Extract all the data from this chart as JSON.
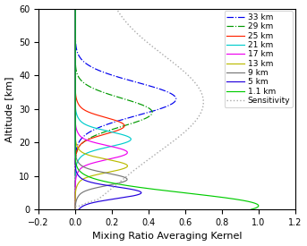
{
  "title": "",
  "xlabel": "Mixing Ratio Averaging Kernel",
  "ylabel": "Altitude [km]",
  "xlim": [
    -0.2,
    1.2
  ],
  "ylim": [
    0,
    60
  ],
  "xticks": [
    -0.2,
    0.0,
    0.2,
    0.4,
    0.6,
    0.8,
    1.0,
    1.2
  ],
  "yticks": [
    0,
    10,
    20,
    30,
    40,
    50,
    60
  ],
  "levels": [
    33,
    29,
    25,
    21,
    17,
    13,
    9,
    5,
    1.1
  ],
  "colors": {
    "33": "#0000ee",
    "29": "#009900",
    "25": "#ff2200",
    "21": "#00cccc",
    "17": "#ee00ee",
    "13": "#bbbb00",
    "9": "#777777",
    "5": "#2200dd",
    "1.1": "#00cc00"
  },
  "linestyles": {
    "33": "dashdot",
    "29": "dashdot",
    "25": "solid",
    "21": "solid",
    "17": "solid",
    "13": "solid",
    "9": "solid",
    "5": "solid",
    "1.1": "solid"
  },
  "sensitivity_color": "#aaaaaa",
  "background": "#ffffff",
  "legend_fontsize": 6.5,
  "axis_fontsize": 8,
  "tick_fontsize": 7
}
